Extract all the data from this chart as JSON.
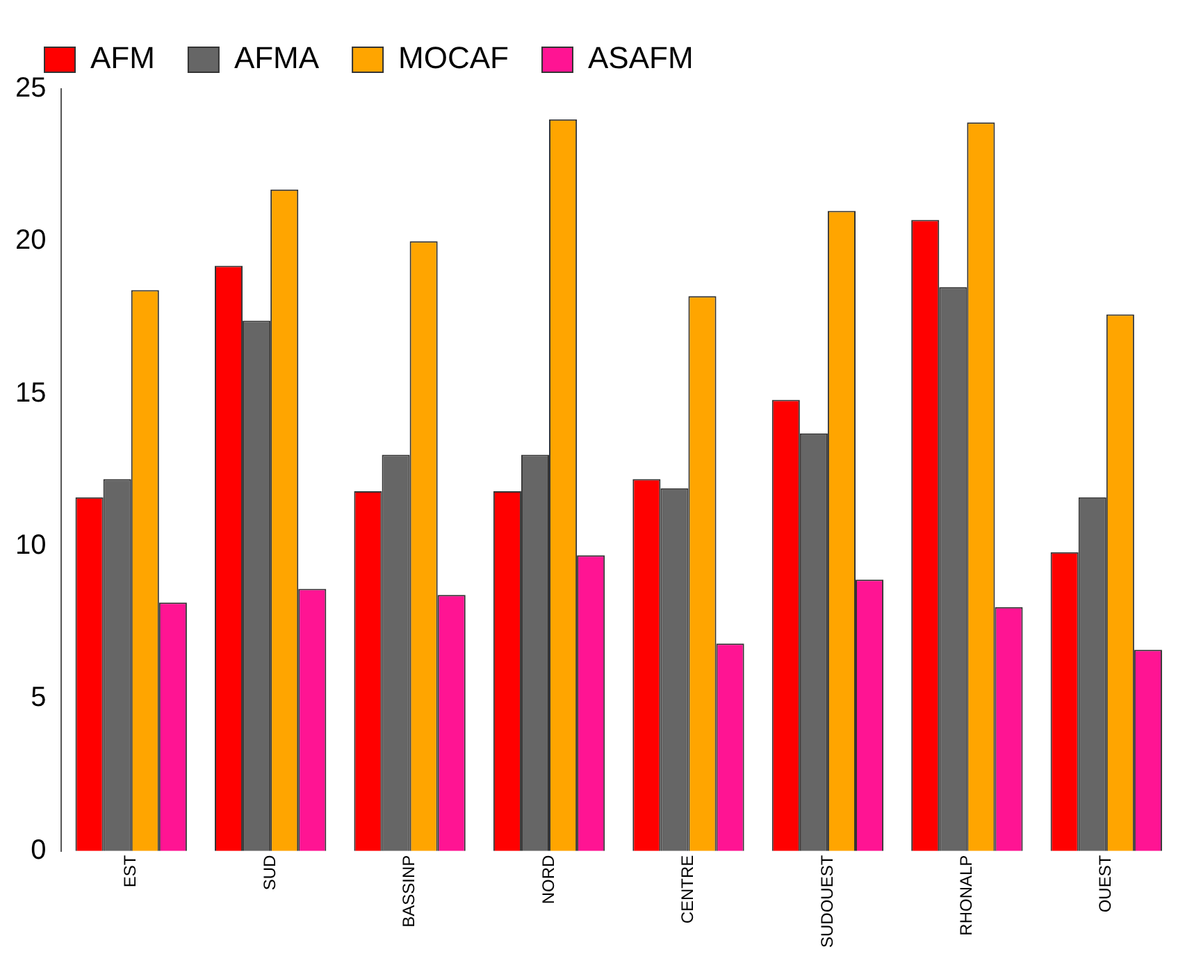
{
  "chart_data": {
    "type": "bar",
    "categories": [
      "EST",
      "SUD",
      "BASSINP",
      "NORD",
      "CENTRE",
      "SUDOUEST",
      "RHONALP",
      "OUEST"
    ],
    "series": [
      {
        "name": "AFM",
        "color": "#ff0000",
        "values": [
          11.6,
          19.2,
          11.8,
          11.8,
          12.2,
          14.8,
          20.7,
          9.8
        ]
      },
      {
        "name": "AFMA",
        "color": "#666666",
        "values": [
          12.2,
          17.4,
          13.0,
          13.0,
          11.9,
          13.7,
          18.5,
          11.6
        ]
      },
      {
        "name": "MOCAF",
        "color": "#ffa500",
        "values": [
          18.4,
          21.7,
          20.0,
          24.0,
          18.2,
          21.0,
          23.9,
          17.6
        ]
      },
      {
        "name": "ASAFM",
        "color": "#ff1493",
        "values": [
          8.15,
          8.6,
          8.4,
          9.7,
          6.8,
          8.9,
          8.0,
          6.6
        ]
      }
    ],
    "ylim": [
      0,
      25
    ],
    "yticks": [
      0,
      5,
      10,
      15,
      20,
      25
    ],
    "grid": false,
    "legend": "top left"
  }
}
